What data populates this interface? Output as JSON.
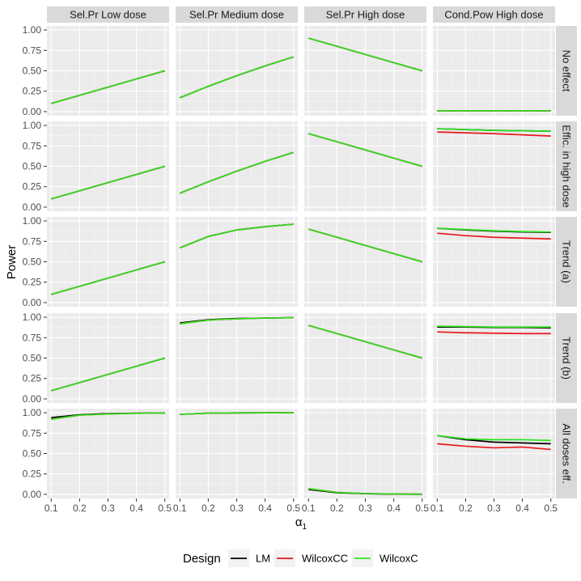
{
  "chart_data": {
    "type": "line",
    "ylabel": "Power",
    "xlabel_base": "α",
    "xlabel_sub": "1",
    "x": [
      0.1,
      0.2,
      0.3,
      0.4,
      0.5
    ],
    "xticks": [
      "0.1",
      "0.2",
      "0.3",
      "0.4",
      "0.5"
    ],
    "yticks": [
      "0.00",
      "0.25",
      "0.50",
      "0.75",
      "1.00"
    ],
    "ylim": [
      0,
      1
    ],
    "columns": [
      "Sel.Pr Low dose",
      "Sel.Pr Medium dose",
      "Sel.Pr High dose",
      "Cond.Pow High dose"
    ],
    "rows": [
      {
        "label": "No effect",
        "label_lines": [
          "No effect"
        ]
      },
      {
        "label": "Effic. in high dose",
        "label_lines": [
          "Effic. in high dose"
        ]
      },
      {
        "label": "Trend (a)",
        "label_lines": [
          "Trend (a)"
        ]
      },
      {
        "label": "Trend (b)",
        "label_lines": [
          "Trend (b)"
        ]
      },
      {
        "label": "All doses eff.",
        "label_lines": [
          "All doses eff."
        ]
      }
    ],
    "legend": {
      "title": "Design",
      "entries": [
        {
          "name": "LM",
          "color": "#000000"
        },
        {
          "name": "WilcoxCC",
          "color": "#e8191d"
        },
        {
          "name": "WilcoxC",
          "color": "#2fe21f"
        }
      ]
    },
    "panels": [
      [
        {
          "LM": [
            0.1,
            0.2,
            0.3,
            0.4,
            0.5
          ],
          "WilcoxCC": [
            0.1,
            0.2,
            0.3,
            0.4,
            0.5
          ],
          "WilcoxC": [
            0.1,
            0.2,
            0.3,
            0.4,
            0.5
          ]
        },
        {
          "LM": [
            0.17,
            0.31,
            0.44,
            0.56,
            0.67
          ],
          "WilcoxCC": [
            0.17,
            0.31,
            0.44,
            0.56,
            0.67
          ],
          "WilcoxC": [
            0.17,
            0.31,
            0.44,
            0.56,
            0.67
          ]
        },
        {
          "LM": [
            0.9,
            0.8,
            0.7,
            0.6,
            0.5
          ],
          "WilcoxCC": [
            0.9,
            0.8,
            0.7,
            0.6,
            0.5
          ],
          "WilcoxC": [
            0.9,
            0.8,
            0.7,
            0.6,
            0.5
          ]
        },
        {
          "LM": [
            0.01,
            0.01,
            0.01,
            0.01,
            0.01
          ],
          "WilcoxCC": [
            0.01,
            0.01,
            0.01,
            0.01,
            0.01
          ],
          "WilcoxC": [
            0.01,
            0.01,
            0.01,
            0.01,
            0.01
          ]
        }
      ],
      [
        {
          "LM": [
            0.1,
            0.2,
            0.3,
            0.4,
            0.5
          ],
          "WilcoxCC": [
            0.1,
            0.2,
            0.3,
            0.4,
            0.5
          ],
          "WilcoxC": [
            0.1,
            0.2,
            0.3,
            0.4,
            0.5
          ]
        },
        {
          "LM": [
            0.17,
            0.31,
            0.44,
            0.56,
            0.67
          ],
          "WilcoxCC": [
            0.17,
            0.31,
            0.44,
            0.56,
            0.67
          ],
          "WilcoxC": [
            0.17,
            0.31,
            0.44,
            0.56,
            0.67
          ]
        },
        {
          "LM": [
            0.9,
            0.8,
            0.7,
            0.6,
            0.5
          ],
          "WilcoxCC": [
            0.9,
            0.8,
            0.7,
            0.6,
            0.5
          ],
          "WilcoxC": [
            0.9,
            0.8,
            0.7,
            0.6,
            0.5
          ]
        },
        {
          "LM": [
            0.96,
            0.95,
            0.94,
            0.935,
            0.93
          ],
          "WilcoxCC": [
            0.92,
            0.91,
            0.9,
            0.885,
            0.87
          ],
          "WilcoxC": [
            0.96,
            0.95,
            0.94,
            0.935,
            0.93
          ]
        }
      ],
      [
        {
          "LM": [
            0.1,
            0.2,
            0.3,
            0.4,
            0.5
          ],
          "WilcoxCC": [
            0.1,
            0.2,
            0.3,
            0.4,
            0.5
          ],
          "WilcoxC": [
            0.1,
            0.2,
            0.3,
            0.4,
            0.5
          ]
        },
        {
          "LM": [
            0.67,
            0.81,
            0.89,
            0.93,
            0.96
          ],
          "WilcoxCC": [
            0.67,
            0.81,
            0.89,
            0.93,
            0.96
          ],
          "WilcoxC": [
            0.67,
            0.81,
            0.89,
            0.93,
            0.96
          ]
        },
        {
          "LM": [
            0.9,
            0.8,
            0.7,
            0.6,
            0.5
          ],
          "WilcoxCC": [
            0.9,
            0.8,
            0.7,
            0.6,
            0.5
          ],
          "WilcoxC": [
            0.9,
            0.8,
            0.7,
            0.6,
            0.5
          ]
        },
        {
          "LM": [
            0.91,
            0.89,
            0.875,
            0.865,
            0.86
          ],
          "WilcoxCC": [
            0.85,
            0.82,
            0.8,
            0.79,
            0.78
          ],
          "WilcoxC": [
            0.91,
            0.895,
            0.88,
            0.87,
            0.865
          ]
        }
      ],
      [
        {
          "LM": [
            0.1,
            0.2,
            0.3,
            0.4,
            0.5
          ],
          "WilcoxCC": [
            0.1,
            0.2,
            0.3,
            0.4,
            0.5
          ],
          "WilcoxC": [
            0.1,
            0.2,
            0.3,
            0.4,
            0.5
          ]
        },
        {
          "LM": [
            0.93,
            0.97,
            0.985,
            0.99,
            0.995
          ],
          "WilcoxCC": [
            0.92,
            0.965,
            0.98,
            0.99,
            0.995
          ],
          "WilcoxC": [
            0.92,
            0.965,
            0.98,
            0.99,
            0.995
          ]
        },
        {
          "LM": [
            0.9,
            0.8,
            0.7,
            0.6,
            0.5
          ],
          "WilcoxCC": [
            0.9,
            0.8,
            0.7,
            0.6,
            0.5
          ],
          "WilcoxC": [
            0.9,
            0.8,
            0.7,
            0.6,
            0.5
          ]
        },
        {
          "LM": [
            0.88,
            0.88,
            0.875,
            0.875,
            0.87
          ],
          "WilcoxCC": [
            0.82,
            0.81,
            0.805,
            0.8,
            0.8
          ],
          "WilcoxC": [
            0.89,
            0.885,
            0.88,
            0.88,
            0.88
          ]
        }
      ],
      [
        {
          "LM": [
            0.94,
            0.975,
            0.99,
            0.995,
            0.998
          ],
          "WilcoxCC": [
            0.92,
            0.97,
            0.985,
            0.993,
            0.997
          ],
          "WilcoxC": [
            0.92,
            0.97,
            0.985,
            0.993,
            0.997
          ]
        },
        {
          "LM": [
            0.98,
            0.995,
            0.998,
            0.999,
            1.0
          ],
          "WilcoxCC": [
            0.98,
            0.995,
            0.998,
            0.999,
            1.0
          ],
          "WilcoxC": [
            0.98,
            0.995,
            0.998,
            0.999,
            1.0
          ]
        },
        {
          "LM": [
            0.06,
            0.02,
            0.008,
            0.003,
            0.001
          ],
          "WilcoxCC": [
            0.07,
            0.025,
            0.01,
            0.005,
            0.002
          ],
          "WilcoxC": [
            0.07,
            0.025,
            0.01,
            0.005,
            0.002
          ]
        },
        {
          "LM": [
            0.72,
            0.67,
            0.64,
            0.63,
            0.62
          ],
          "WilcoxCC": [
            0.62,
            0.59,
            0.57,
            0.58,
            0.55
          ],
          "WilcoxC": [
            0.72,
            0.68,
            0.67,
            0.67,
            0.66
          ]
        }
      ]
    ]
  }
}
